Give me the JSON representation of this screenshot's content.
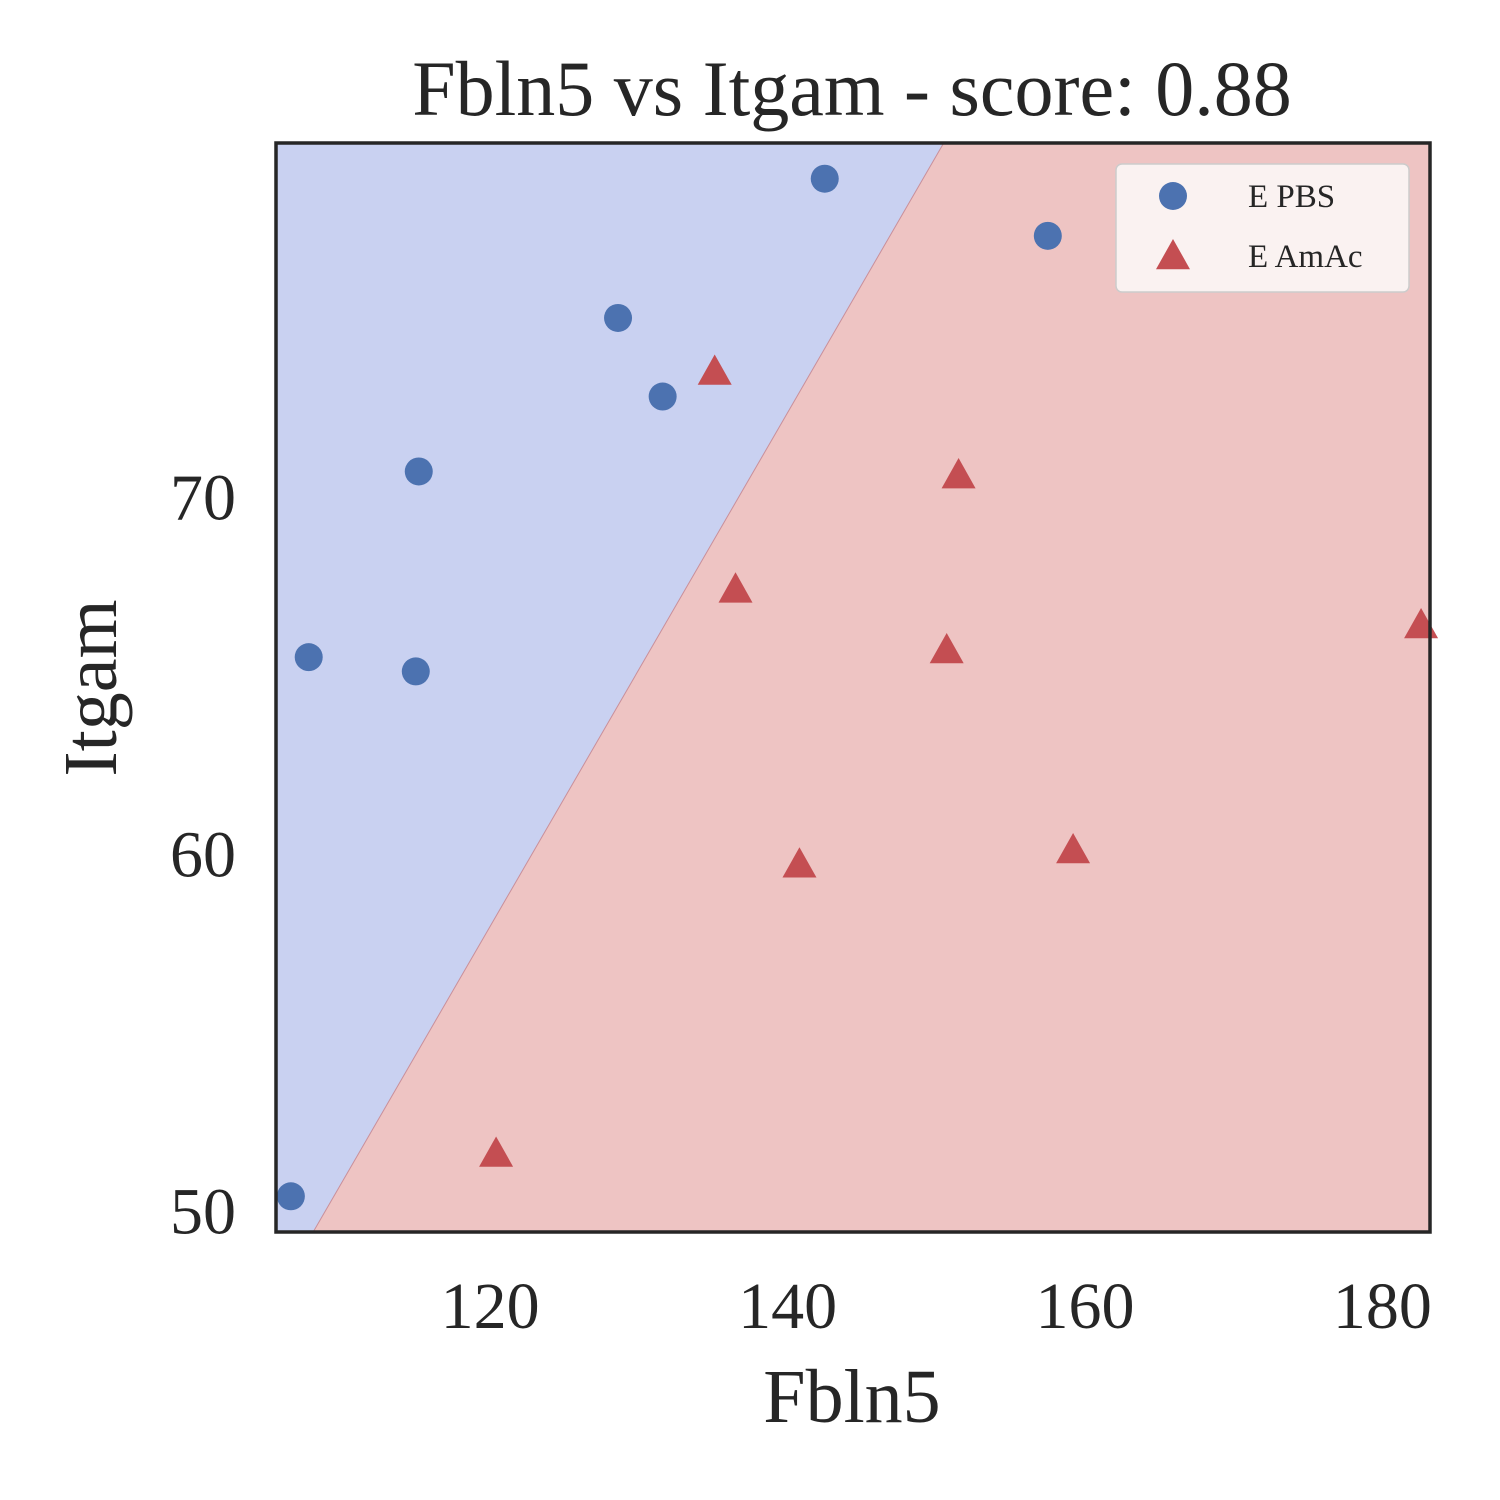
{
  "chart_data": {
    "type": "scatter",
    "title": "Fbln5 vs Itgam - score: 0.88",
    "xlabel": "Fbln5",
    "ylabel": "Itgam",
    "xlim": [
      105.6,
      183.2
    ],
    "ylim": [
      49.4,
      79.9
    ],
    "xticks": [
      120,
      140,
      160,
      180
    ],
    "yticks": [
      50,
      60,
      70
    ],
    "grid": false,
    "legend": "top-right",
    "decision_boundary": {
      "line": [
        [
          108.1,
          49.4
        ],
        [
          150.5,
          79.9
        ]
      ],
      "regions": [
        {
          "series": "E PBS",
          "side": "left",
          "color": "#c9d1f1"
        },
        {
          "series": "E AmAc",
          "side": "right",
          "color": "#eec4c3"
        }
      ]
    },
    "series": [
      {
        "name": "E PBS",
        "marker": "circle",
        "color": "#4c72b0",
        "points": [
          {
            "x": 142.5,
            "y": 78.9
          },
          {
            "x": 157.5,
            "y": 77.3
          },
          {
            "x": 128.6,
            "y": 75.0
          },
          {
            "x": 131.6,
            "y": 72.8
          },
          {
            "x": 115.2,
            "y": 70.7
          },
          {
            "x": 107.8,
            "y": 65.5
          },
          {
            "x": 115.0,
            "y": 65.1
          },
          {
            "x": 106.6,
            "y": 50.4
          }
        ]
      },
      {
        "name": "E AmAc",
        "marker": "triangle",
        "color": "#c44e52",
        "points": [
          {
            "x": 135.1,
            "y": 73.5
          },
          {
            "x": 151.5,
            "y": 70.6
          },
          {
            "x": 136.5,
            "y": 67.4
          },
          {
            "x": 182.6,
            "y": 66.4
          },
          {
            "x": 150.7,
            "y": 65.7
          },
          {
            "x": 140.8,
            "y": 59.7
          },
          {
            "x": 159.2,
            "y": 60.1
          },
          {
            "x": 120.4,
            "y": 51.6
          }
        ]
      }
    ]
  }
}
